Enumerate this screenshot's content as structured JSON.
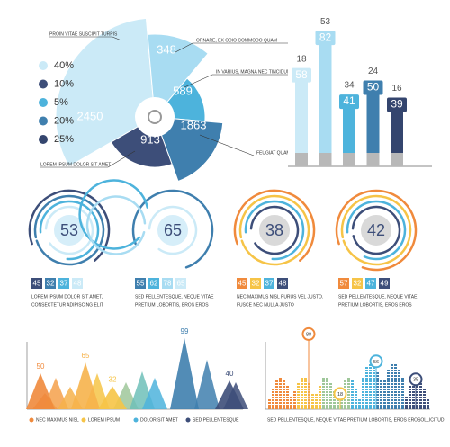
{
  "rose": {
    "values": [
      2450,
      348,
      589,
      1863,
      913
    ],
    "labels": [
      "PROIN VITAE SUSCIPIT TURPIS",
      "ORNARE, EX ODIO COMMODO QUAM",
      "IN VARIUS, MAGNA NEC TINCIDUNT",
      "FEUGIAT QUAM",
      "LOREM IPSUM DOLOR SIT AMET"
    ],
    "colors": [
      "#cbeaf7",
      "#a8dcf2",
      "#4db3dc",
      "#3f7fae",
      "#3d4e79"
    ]
  },
  "legend": [
    {
      "label": "40%",
      "color": "#cbeaf7"
    },
    {
      "label": "10%",
      "color": "#3d4e79"
    },
    {
      "label": "5%",
      "color": "#4db3dc"
    },
    {
      "label": "20%",
      "color": "#3f7fae"
    },
    {
      "label": "25%",
      "color": "#34456e"
    }
  ],
  "columns": [
    {
      "top": 18,
      "value": 58,
      "color": "#cbeaf7"
    },
    {
      "top": 53,
      "value": 82,
      "color": "#a8dcf2"
    },
    {
      "top": 34,
      "value": 41,
      "color": "#4db3dc"
    },
    {
      "top": 24,
      "value": 50,
      "color": "#3f7fae"
    },
    {
      "top": 16,
      "value": 39,
      "color": "#34456e"
    }
  ],
  "gauges": [
    {
      "value": 53,
      "numbers": [
        45,
        32,
        37,
        48
      ],
      "lines": [
        "LOREM IPSUM DOLOR SIT AMET,",
        "CONSECTETUR ADIPISCING ELIT"
      ]
    },
    {
      "value": 65,
      "numbers": [
        55,
        62,
        78,
        65
      ],
      "lines": [
        "SED PELLENTESQUE, NEQUE VITAE",
        "PRETIUM LOBORTIS, EROS EROS"
      ]
    },
    {
      "value": 38,
      "numbers": [
        45,
        32,
        37,
        48
      ],
      "lines": [
        "NEC MAXIMUS NISL PURUS VEL JUSTO.",
        "FUSCE NEC NULLA JUSTO"
      ]
    },
    {
      "value": 42,
      "numbers": [
        57,
        32,
        47,
        49
      ],
      "lines": [
        "SED PELLENTESQUE, NEQUE VITAE",
        "PRETIUM LOBORTIS, EROS EROS"
      ]
    }
  ],
  "mountains": {
    "peaks": [
      50,
      65,
      32,
      99,
      40
    ],
    "legend": [
      {
        "label": "NEC MAXIMUS NISL",
        "color": "#f08a3c"
      },
      {
        "label": "LOREM IPSUM",
        "color": "#f6c447"
      },
      {
        "label": "DOLOR SIT AMET",
        "color": "#4db3dc"
      },
      {
        "label": "SED PELLENTESQUE",
        "color": "#3d4e79"
      }
    ]
  },
  "equalizer": {
    "markers": [
      88,
      18,
      56,
      35
    ],
    "caption": "SED PELLENTESQUE, NEQUE VITAE PRETIUM LOBORTIS, EROS EROSOLLICITUD"
  }
}
